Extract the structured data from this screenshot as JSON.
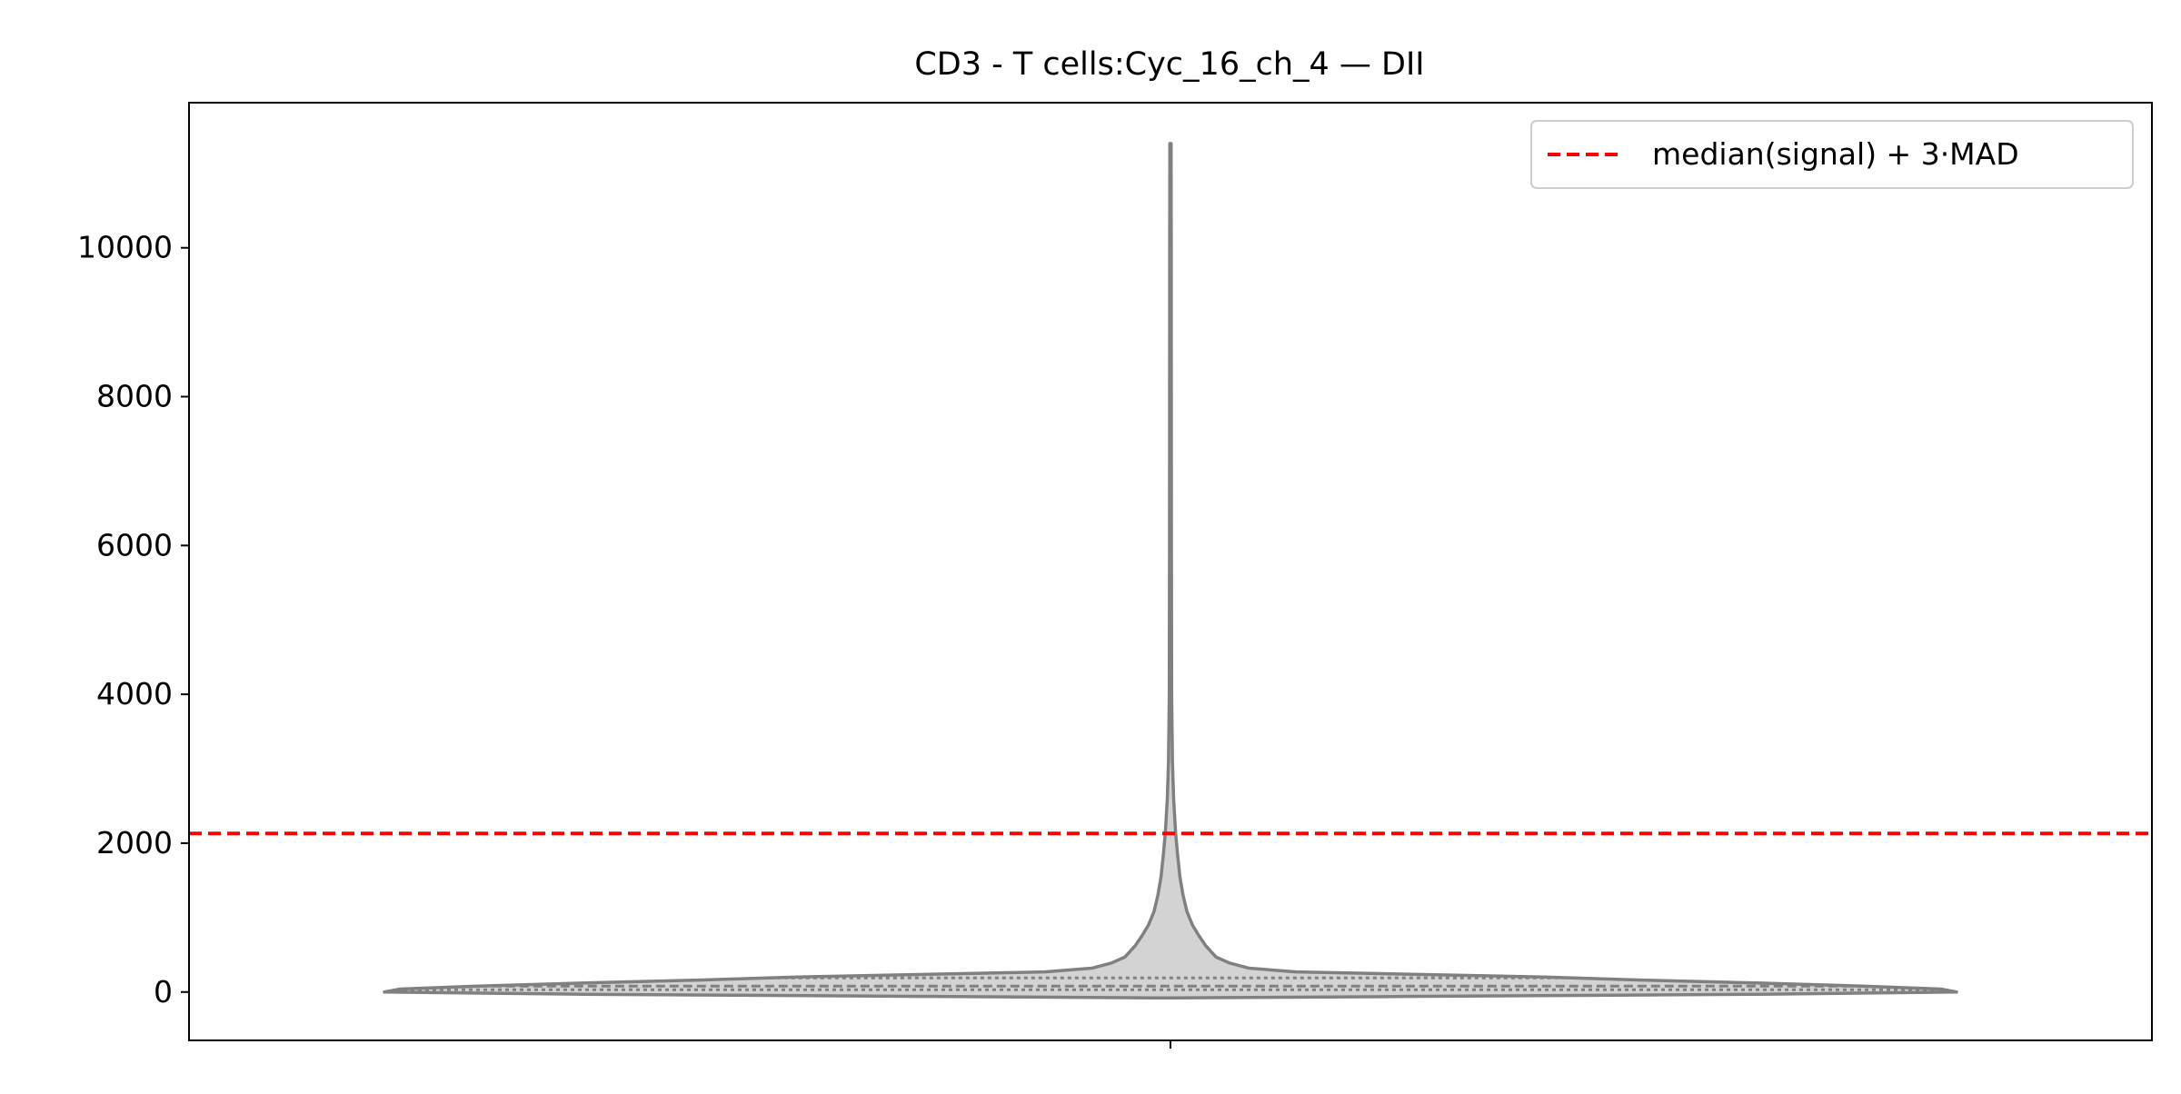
{
  "chart_data": {
    "type": "violin",
    "title": "CD3 - T cells:Cyc_16_ch_4 — DII",
    "xlabel": "",
    "ylabel": "",
    "ylim": [
      -650,
      11950
    ],
    "yticks": [
      0,
      2000,
      4000,
      6000,
      8000,
      10000
    ],
    "grid": false,
    "categories": [
      ""
    ],
    "violin": {
      "fill_color": "#d3d3d3",
      "edge_color": "#808080",
      "min": -80,
      "max": 11400,
      "inner": "quartiles",
      "quartiles": [
        30,
        80,
        190
      ],
      "half_width_profile": [
        {
          "y": -80,
          "w": 0.0
        },
        {
          "y": -60,
          "w": 0.3
        },
        {
          "y": -30,
          "w": 0.75
        },
        {
          "y": 0,
          "w": 1.0
        },
        {
          "y": 40,
          "w": 0.98
        },
        {
          "y": 80,
          "w": 0.88
        },
        {
          "y": 120,
          "w": 0.75
        },
        {
          "y": 160,
          "w": 0.6
        },
        {
          "y": 200,
          "w": 0.48
        },
        {
          "y": 240,
          "w": 0.3
        },
        {
          "y": 270,
          "w": 0.16
        },
        {
          "y": 320,
          "w": 0.1
        },
        {
          "y": 390,
          "w": 0.075
        },
        {
          "y": 470,
          "w": 0.058
        },
        {
          "y": 620,
          "w": 0.045
        },
        {
          "y": 760,
          "w": 0.036
        },
        {
          "y": 900,
          "w": 0.028
        },
        {
          "y": 1080,
          "w": 0.021
        },
        {
          "y": 1300,
          "w": 0.016
        },
        {
          "y": 1550,
          "w": 0.012
        },
        {
          "y": 1850,
          "w": 0.009
        },
        {
          "y": 2150,
          "w": 0.0065
        },
        {
          "y": 2600,
          "w": 0.004
        },
        {
          "y": 3100,
          "w": 0.0025
        },
        {
          "y": 4000,
          "w": 0.0015
        },
        {
          "y": 6000,
          "w": 0.0012
        },
        {
          "y": 8000,
          "w": 0.0011
        },
        {
          "y": 10000,
          "w": 0.001
        },
        {
          "y": 11400,
          "w": 0.0008
        }
      ]
    },
    "reference_line": {
      "y": 2130,
      "color": "#ff0000",
      "style": "dashed",
      "label": "median(signal) + 3·MAD"
    },
    "legend": {
      "placement": "top-right",
      "entries": [
        "median(signal) + 3·MAD"
      ]
    }
  }
}
